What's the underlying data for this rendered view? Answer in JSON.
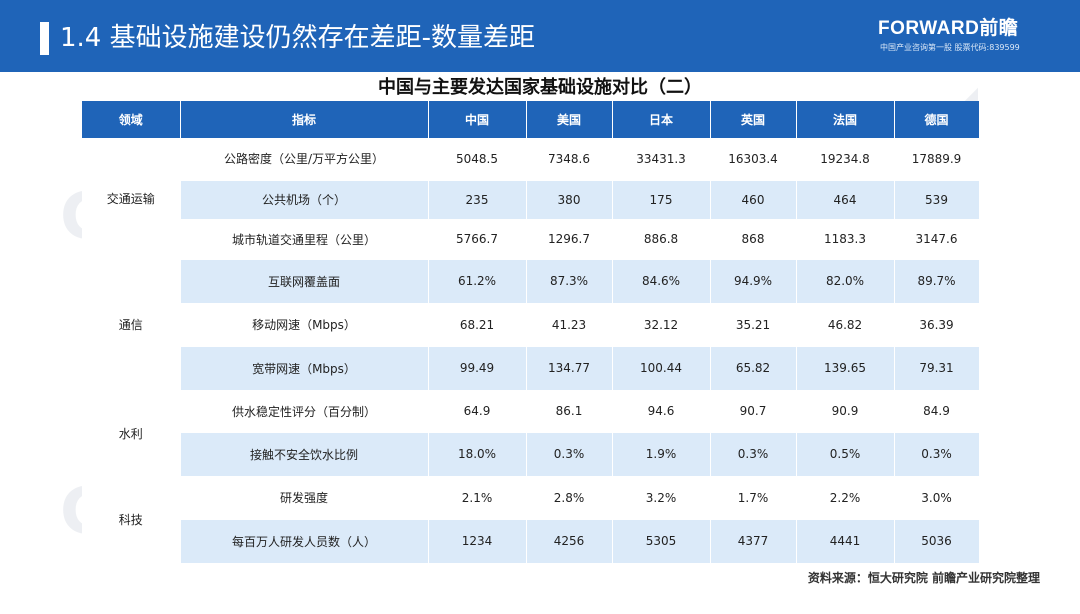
{
  "header": {
    "title": "1.4 基础设施建设仍然存在差距-数量差距",
    "logo": "FORWARD前瞻",
    "logo_sub": "中国产业咨询第一股 股票代码:839599"
  },
  "table": {
    "title": "中国与主要发达国家基础设施对比（二）",
    "headers": [
      "领域",
      "指标",
      "中国",
      "美国",
      "日本",
      "英国",
      "法国",
      "德国"
    ],
    "domains": [
      "交通运输",
      "通信",
      "水利",
      "科技"
    ],
    "rows": [
      {
        "indicator": "公路密度（公里/万平方公里）",
        "values": [
          "5048.5",
          "7348.6",
          "33431.3",
          "16303.4",
          "19234.8",
          "17889.9"
        ]
      },
      {
        "indicator": "公共机场（个）",
        "values": [
          "235",
          "380",
          "175",
          "460",
          "464",
          "539"
        ]
      },
      {
        "indicator": "城市轨道交通里程（公里）",
        "values": [
          "5766.7",
          "1296.7",
          "886.8",
          "868",
          "1183.3",
          "3147.6"
        ]
      },
      {
        "indicator": "互联网覆盖面",
        "values": [
          "61.2%",
          "87.3%",
          "84.6%",
          "94.9%",
          "82.0%",
          "89.7%"
        ]
      },
      {
        "indicator": "移动网速（Mbps）",
        "values": [
          "68.21",
          "41.23",
          "32.12",
          "35.21",
          "46.82",
          "36.39"
        ]
      },
      {
        "indicator": "宽带网速（Mbps）",
        "values": [
          "99.49",
          "134.77",
          "100.44",
          "65.82",
          "139.65",
          "79.31"
        ]
      },
      {
        "indicator": "供水稳定性评分（百分制）",
        "values": [
          "64.9",
          "86.1",
          "94.6",
          "90.7",
          "90.9",
          "84.9"
        ]
      },
      {
        "indicator": "接触不安全饮水比例",
        "values": [
          "18.0%",
          "0.3%",
          "1.9%",
          "0.3%",
          "0.5%",
          "0.3%"
        ]
      },
      {
        "indicator": "研发强度",
        "values": [
          "2.1%",
          "2.8%",
          "3.2%",
          "1.7%",
          "2.2%",
          "3.0%"
        ]
      },
      {
        "indicator": "每百万人研发人员数（人）",
        "values": [
          "1234",
          "4256",
          "5305",
          "4377",
          "4441",
          "5036"
        ]
      }
    ]
  },
  "source": "资料来源：恒大研究院 前瞻产业研究院整理",
  "colors": {
    "header_bg": "#1f64b8",
    "row_stripe": "#dbeaf9"
  }
}
